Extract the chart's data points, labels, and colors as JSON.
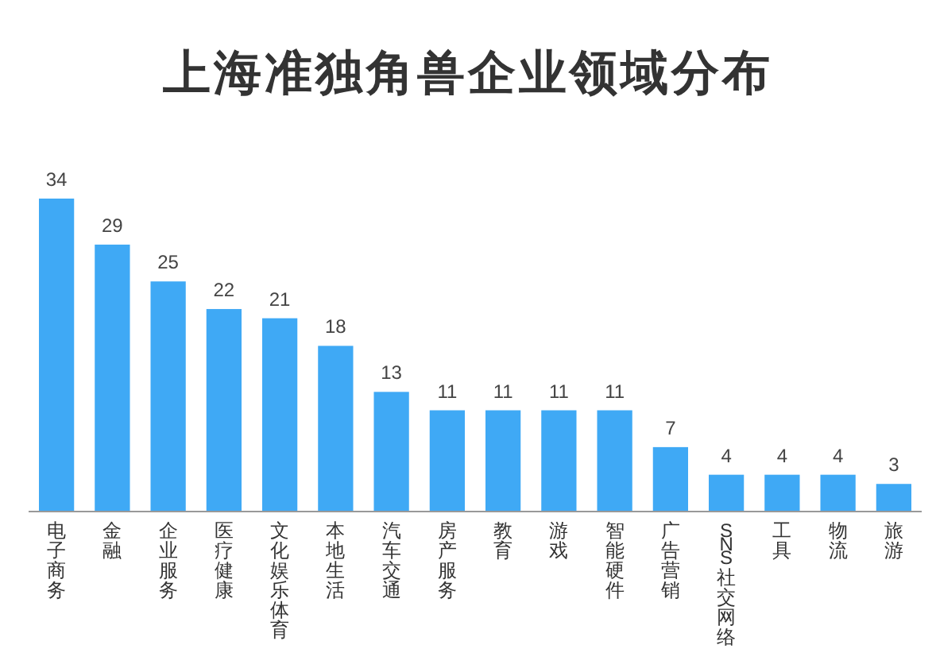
{
  "chart_data": {
    "type": "bar",
    "title": "上海准独角兽企业领域分布",
    "categories": [
      "电子商务",
      "金融",
      "企业服务",
      "医疗健康",
      "文化娱乐体育",
      "本地生活",
      "汽车交通",
      "房产服务",
      "教育",
      "游戏",
      "智能硬件",
      "广告营销",
      "SNS社交网络",
      "工具",
      "物流",
      "旅游"
    ],
    "values": [
      34,
      29,
      25,
      22,
      21,
      18,
      13,
      11,
      11,
      11,
      11,
      7,
      4,
      4,
      4,
      3
    ],
    "color": "#3fa9f5",
    "data_labels": true
  }
}
